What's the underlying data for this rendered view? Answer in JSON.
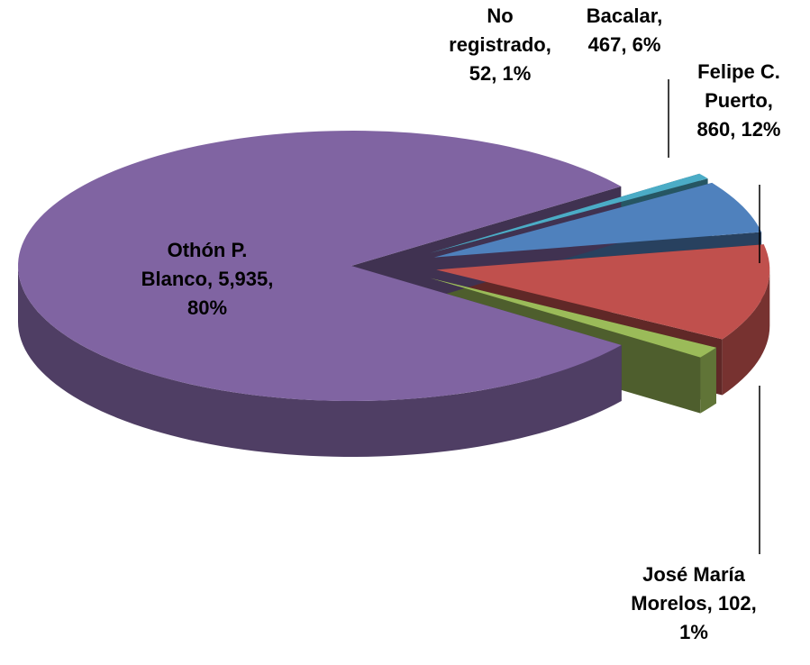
{
  "chart_data": {
    "type": "pie",
    "three_d": true,
    "categories": [
      "No registrado",
      "Bacalar",
      "Felipe C. Puerto",
      "José María Morelos",
      "Othón P. Blanco"
    ],
    "values": [
      52,
      467,
      860,
      102,
      5935
    ],
    "value_labels": [
      "52",
      "467",
      "860",
      "102",
      "5,935"
    ],
    "percentages": [
      1,
      6,
      12,
      1,
      80
    ],
    "percentage_labels": [
      "1%",
      "6%",
      "12%",
      "1%",
      "80%"
    ],
    "colors": [
      "#4bacc6",
      "#4f81bd",
      "#c0504d",
      "#9bbb59",
      "#8064a2"
    ]
  }
}
